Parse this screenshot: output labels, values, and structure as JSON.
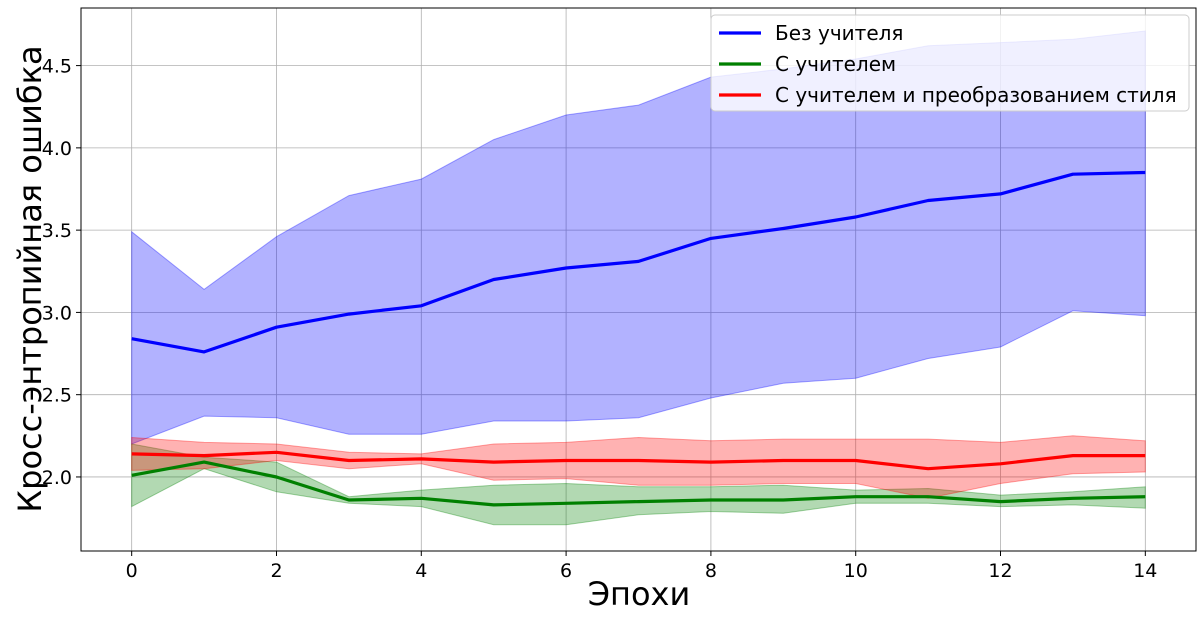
{
  "chart_data": {
    "type": "line",
    "xlabel": "Эпохи",
    "ylabel": "Кросс-энтропийная ошибка",
    "xlim": [
      -0.7,
      14.7
    ],
    "ylim": [
      1.55,
      4.85
    ],
    "xticks": [
      "0",
      "2",
      "4",
      "6",
      "8",
      "10",
      "12",
      "14"
    ],
    "yticks": [
      "2.0",
      "2.5",
      "3.0",
      "3.5",
      "4.0",
      "4.5"
    ],
    "grid": true,
    "legend_position": "top-right",
    "x": [
      0,
      1,
      2,
      3,
      4,
      5,
      6,
      7,
      8,
      9,
      10,
      11,
      12,
      13,
      14
    ],
    "series": [
      {
        "name": "Без учителя",
        "color": "#0000ff",
        "values": [
          2.84,
          2.76,
          2.91,
          2.99,
          3.04,
          3.2,
          3.27,
          3.31,
          3.45,
          3.51,
          3.58,
          3.68,
          3.72,
          3.84,
          3.85
        ],
        "upper": [
          3.49,
          3.14,
          3.46,
          3.71,
          3.81,
          4.05,
          4.2,
          4.26,
          4.43,
          4.48,
          4.54,
          4.62,
          4.64,
          4.66,
          4.71
        ],
        "lower": [
          2.2,
          2.37,
          2.36,
          2.26,
          2.26,
          2.34,
          2.34,
          2.36,
          2.48,
          2.57,
          2.6,
          2.72,
          2.79,
          3.01,
          2.98
        ]
      },
      {
        "name": "С учителем",
        "color": "#008000",
        "values": [
          2.01,
          2.09,
          2.0,
          1.86,
          1.87,
          1.83,
          1.84,
          1.85,
          1.86,
          1.86,
          1.88,
          1.88,
          1.85,
          1.87,
          1.88
        ],
        "upper": [
          2.2,
          2.12,
          2.09,
          1.88,
          1.92,
          1.95,
          1.96,
          1.94,
          1.94,
          1.95,
          1.92,
          1.93,
          1.89,
          1.91,
          1.94
        ],
        "lower": [
          1.82,
          2.05,
          1.91,
          1.84,
          1.82,
          1.71,
          1.71,
          1.77,
          1.79,
          1.78,
          1.84,
          1.84,
          1.82,
          1.83,
          1.81
        ]
      },
      {
        "name": "С учителем и преобразованием стиля",
        "color": "#ff0000",
        "values": [
          2.14,
          2.13,
          2.15,
          2.1,
          2.11,
          2.09,
          2.1,
          2.1,
          2.09,
          2.1,
          2.1,
          2.05,
          2.08,
          2.13,
          2.13
        ],
        "upper": [
          2.24,
          2.21,
          2.2,
          2.15,
          2.14,
          2.2,
          2.21,
          2.24,
          2.22,
          2.23,
          2.23,
          2.23,
          2.21,
          2.25,
          2.22
        ],
        "lower": [
          2.04,
          2.05,
          2.1,
          2.05,
          2.08,
          1.98,
          1.99,
          1.95,
          1.95,
          1.96,
          1.96,
          1.87,
          1.96,
          2.02,
          2.03
        ]
      }
    ]
  }
}
